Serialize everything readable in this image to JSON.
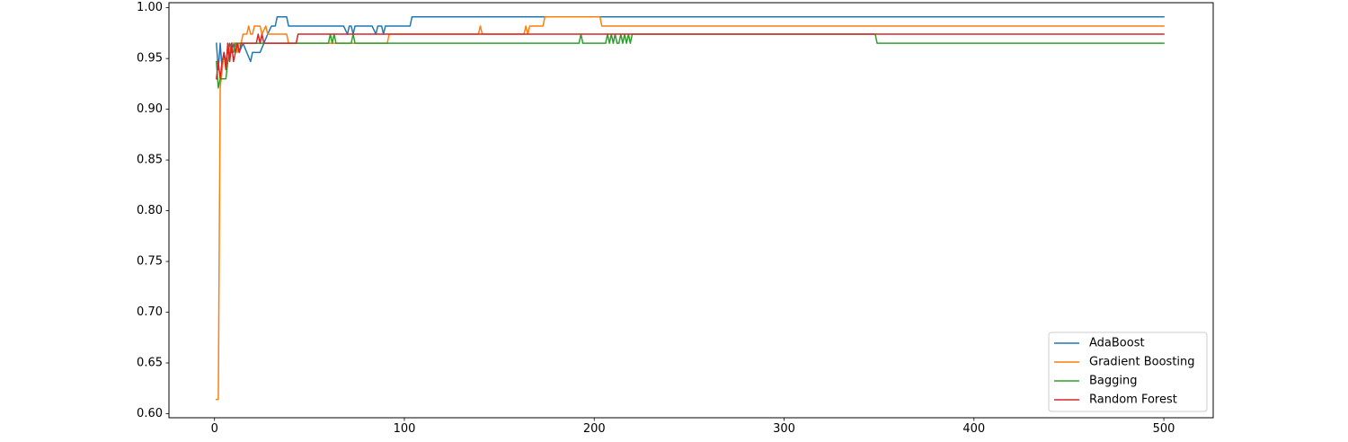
{
  "chart_data": {
    "type": "line",
    "title": "",
    "xlabel": "",
    "ylabel": "",
    "xlim": [
      -24,
      526
    ],
    "ylim": [
      0.596,
      1.005
    ],
    "xticks": [
      0,
      100,
      200,
      300,
      400,
      500
    ],
    "xtick_labels": [
      "0",
      "100",
      "200",
      "300",
      "400",
      "500"
    ],
    "yticks": [
      0.6,
      0.65,
      0.7,
      0.75,
      0.8,
      0.85,
      0.9,
      0.95,
      1.0
    ],
    "ytick_labels": [
      "0.60",
      "0.65",
      "0.70",
      "0.75",
      "0.80",
      "0.85",
      "0.90",
      "0.95",
      "1.00"
    ],
    "grid": false,
    "legend_position": "lower-right",
    "series": [
      {
        "name": "AdaBoost",
        "color": "#1f77b4",
        "points": [
          [
            1,
            0.965
          ],
          [
            2,
            0.939
          ],
          [
            3,
            0.965
          ],
          [
            4,
            0.939
          ],
          [
            5,
            0.956
          ],
          [
            6,
            0.947
          ],
          [
            7,
            0.956
          ],
          [
            8,
            0.965
          ],
          [
            9,
            0.956
          ],
          [
            10,
            0.965
          ],
          [
            11,
            0.956
          ],
          [
            12,
            0.965
          ],
          [
            13,
            0.956
          ],
          [
            15,
            0.965
          ],
          [
            17,
            0.956
          ],
          [
            19,
            0.947
          ],
          [
            20,
            0.956
          ],
          [
            24,
            0.956
          ],
          [
            26,
            0.965
          ],
          [
            28,
            0.974
          ],
          [
            30,
            0.982
          ],
          [
            32,
            0.982
          ],
          [
            33,
            0.991
          ],
          [
            38,
            0.991
          ],
          [
            39,
            0.982
          ],
          [
            68,
            0.982
          ],
          [
            70,
            0.974
          ],
          [
            71,
            0.982
          ],
          [
            72,
            0.982
          ],
          [
            73,
            0.974
          ],
          [
            74,
            0.982
          ],
          [
            83,
            0.982
          ],
          [
            85,
            0.974
          ],
          [
            86,
            0.982
          ],
          [
            88,
            0.982
          ],
          [
            89,
            0.974
          ],
          [
            90,
            0.982
          ],
          [
            103,
            0.982
          ],
          [
            104,
            0.991
          ],
          [
            500,
            0.991
          ]
        ]
      },
      {
        "name": "Gradient Boosting",
        "color": "#ff7f0e",
        "points": [
          [
            1,
            0.614
          ],
          [
            2,
            0.614
          ],
          [
            3,
            0.921
          ],
          [
            4,
            0.939
          ],
          [
            5,
            0.956
          ],
          [
            6,
            0.939
          ],
          [
            7,
            0.965
          ],
          [
            8,
            0.956
          ],
          [
            9,
            0.965
          ],
          [
            11,
            0.965
          ],
          [
            12,
            0.956
          ],
          [
            13,
            0.965
          ],
          [
            14,
            0.965
          ],
          [
            15,
            0.974
          ],
          [
            17,
            0.974
          ],
          [
            18,
            0.982
          ],
          [
            19,
            0.974
          ],
          [
            20,
            0.974
          ],
          [
            21,
            0.982
          ],
          [
            24,
            0.982
          ],
          [
            25,
            0.974
          ],
          [
            27,
            0.982
          ],
          [
            28,
            0.974
          ],
          [
            29,
            0.974
          ],
          [
            30,
            0.974
          ],
          [
            38,
            0.974
          ],
          [
            39,
            0.965
          ],
          [
            91,
            0.965
          ],
          [
            92,
            0.974
          ],
          [
            139,
            0.974
          ],
          [
            140,
            0.982
          ],
          [
            141,
            0.974
          ],
          [
            163,
            0.974
          ],
          [
            164,
            0.982
          ],
          [
            165,
            0.974
          ],
          [
            166,
            0.982
          ],
          [
            173,
            0.982
          ],
          [
            174,
            0.991
          ],
          [
            203,
            0.991
          ],
          [
            204,
            0.982
          ],
          [
            500,
            0.982
          ]
        ]
      },
      {
        "name": "Bagging",
        "color": "#2ca02c",
        "points": [
          [
            1,
            0.947
          ],
          [
            2,
            0.921
          ],
          [
            3,
            0.93
          ],
          [
            6,
            0.93
          ],
          [
            7,
            0.947
          ],
          [
            8,
            0.956
          ],
          [
            10,
            0.956
          ],
          [
            11,
            0.965
          ],
          [
            60,
            0.965
          ],
          [
            61,
            0.974
          ],
          [
            62,
            0.965
          ],
          [
            63,
            0.974
          ],
          [
            64,
            0.965
          ],
          [
            72,
            0.965
          ],
          [
            73,
            0.974
          ],
          [
            74,
            0.965
          ],
          [
            192,
            0.965
          ],
          [
            193,
            0.974
          ],
          [
            194,
            0.965
          ],
          [
            206,
            0.965
          ],
          [
            207,
            0.974
          ],
          [
            208,
            0.965
          ],
          [
            209,
            0.974
          ],
          [
            210,
            0.965
          ],
          [
            211,
            0.974
          ],
          [
            212,
            0.965
          ],
          [
            213,
            0.965
          ],
          [
            214,
            0.974
          ],
          [
            215,
            0.965
          ],
          [
            216,
            0.974
          ],
          [
            217,
            0.965
          ],
          [
            218,
            0.974
          ],
          [
            219,
            0.965
          ],
          [
            220,
            0.974
          ],
          [
            348,
            0.974
          ],
          [
            349,
            0.965
          ],
          [
            500,
            0.965
          ]
        ]
      },
      {
        "name": "Random Forest",
        "color": "#d62728",
        "points": [
          [
            1,
            0.93
          ],
          [
            2,
            0.947
          ],
          [
            3,
            0.93
          ],
          [
            4,
            0.947
          ],
          [
            5,
            0.956
          ],
          [
            6,
            0.939
          ],
          [
            7,
            0.965
          ],
          [
            8,
            0.947
          ],
          [
            9,
            0.965
          ],
          [
            10,
            0.947
          ],
          [
            11,
            0.956
          ],
          [
            12,
            0.965
          ],
          [
            13,
            0.956
          ],
          [
            14,
            0.965
          ],
          [
            22,
            0.965
          ],
          [
            23,
            0.974
          ],
          [
            24,
            0.965
          ],
          [
            25,
            0.974
          ],
          [
            26,
            0.965
          ],
          [
            43,
            0.965
          ],
          [
            44,
            0.974
          ],
          [
            500,
            0.974
          ]
        ]
      }
    ]
  }
}
